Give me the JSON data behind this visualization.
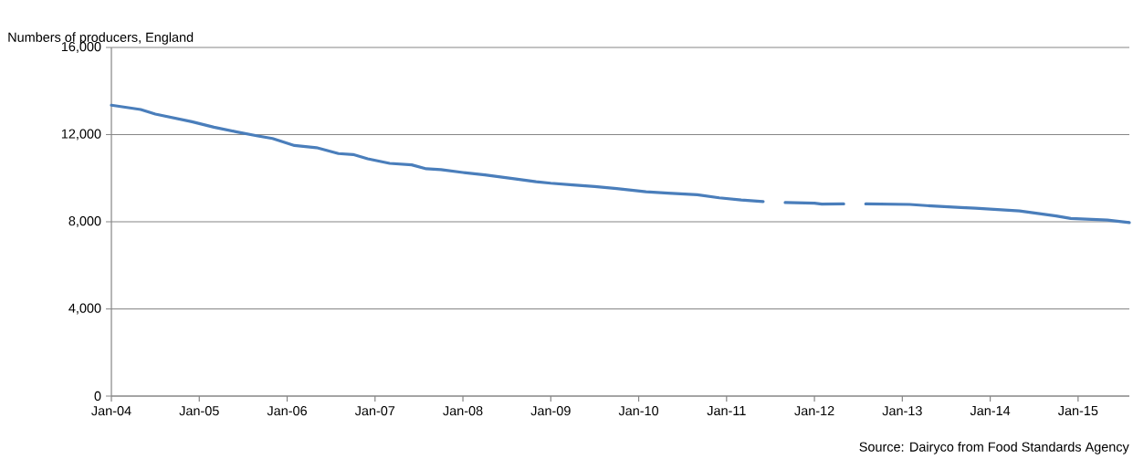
{
  "chart_data": {
    "type": "line",
    "ylabel": "Numbers of producers, England",
    "annotations": [
      "Source: Dairyco from Food Standards Agency"
    ],
    "x": [
      "2004-01",
      "2004-05",
      "2004-07",
      "2004-12",
      "2005-03",
      "2005-06",
      "2005-09",
      "2005-11",
      "2006-02",
      "2006-05",
      "2006-08",
      "2006-10",
      "2006-12",
      "2007-03",
      "2007-06",
      "2007-08",
      "2007-10",
      "2008-01",
      "2008-04",
      "2008-08",
      "2008-11",
      "2009-01",
      "2009-04",
      "2009-07",
      "2009-10",
      "2010-02",
      "2010-05",
      "2010-09",
      "2010-12",
      "2011-03",
      "2011-06",
      "2011-07",
      "2011-09",
      "2012-01",
      "2012-02",
      "2012-05",
      "2012-06",
      "2012-08",
      "2013-02",
      "2013-05",
      "2013-09",
      "2013-11",
      "2014-05",
      "2014-10",
      "2014-12",
      "2015-05",
      "2015-08"
    ],
    "series": [
      {
        "color": "#4a7ebb",
        "values": [
          13350,
          13150,
          12940,
          12590,
          12340,
          12130,
          11935,
          11820,
          11500,
          11400,
          11130,
          11085,
          10890,
          10680,
          10610,
          10430,
          10390,
          10260,
          10150,
          9970,
          9840,
          9770,
          9690,
          9620,
          9520,
          9380,
          9310,
          9240,
          9100,
          9000,
          8930,
          null,
          8880,
          8850,
          8810,
          8820,
          null,
          8820,
          8795,
          8725,
          8655,
          8625,
          8500,
          8265,
          8150,
          8080,
          7960
        ]
      }
    ],
    "xlim": [
      "2004-01",
      "2015-08"
    ],
    "xticks": [
      {
        "value": "2004-01",
        "label": "Jan-04"
      },
      {
        "value": "2005-01",
        "label": "Jan-05"
      },
      {
        "value": "2006-01",
        "label": "Jan-06"
      },
      {
        "value": "2007-01",
        "label": "Jan-07"
      },
      {
        "value": "2008-01",
        "label": "Jan-08"
      },
      {
        "value": "2009-01",
        "label": "Jan-09"
      },
      {
        "value": "2010-01",
        "label": "Jan-10"
      },
      {
        "value": "2011-01",
        "label": "Jan-11"
      },
      {
        "value": "2012-01",
        "label": "Jan-12"
      },
      {
        "value": "2013-01",
        "label": "Jan-13"
      },
      {
        "value": "2014-01",
        "label": "Jan-14"
      },
      {
        "value": "2015-01",
        "label": "Jan-15"
      }
    ],
    "ylim": [
      0,
      16000
    ],
    "yticks": [
      {
        "value": 0,
        "label": "0"
      },
      {
        "value": 4000,
        "label": "4,000"
      },
      {
        "value": 8000,
        "label": "8,000"
      },
      {
        "value": 12000,
        "label": "12,000"
      },
      {
        "value": 16000,
        "label": "16,000"
      }
    ],
    "grid": "y",
    "marker": "none",
    "line_style": "solid"
  }
}
